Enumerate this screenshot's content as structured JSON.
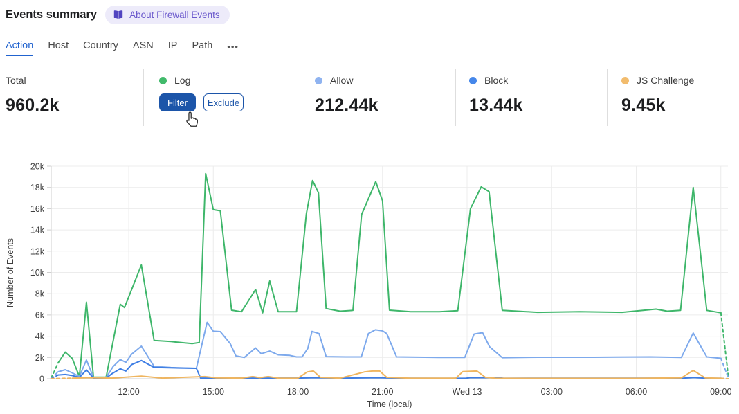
{
  "header": {
    "title": "Events summary",
    "badge": "About Firewall Events"
  },
  "tabs": [
    "Action",
    "Host",
    "Country",
    "ASN",
    "IP",
    "Path"
  ],
  "tabs_more": "•••",
  "stats": [
    {
      "label": "Total",
      "value": "960.2k"
    },
    {
      "label": "Log",
      "dot_style": "background:#41ba6b",
      "buttons": [
        "Filter",
        "Exclude"
      ]
    },
    {
      "label": "Allow",
      "dot_style": "background:#8fb3f0",
      "value": "212.44k"
    },
    {
      "label": "Block",
      "dot_style": "background:#4587ea",
      "value": "13.44k"
    },
    {
      "label": "JS Challenge",
      "dot_style": "background:#f2bc6d",
      "value": "9.45k"
    }
  ],
  "chart_data": {
    "type": "line",
    "xlabel": "Time (local)",
    "ylabel": "Number of Events",
    "unit": "thousands of events (k)",
    "x_unit": "hours relative to Wed 13 00:00",
    "x_domain_hours": [
      -14.75,
      9.27
    ],
    "ylim_k": [
      0,
      20
    ],
    "grid": "horizontal every 2k, vertical every 3h",
    "legend_position": "none (stat cards above act as legend)",
    "colors": {
      "grid": "#ececec",
      "axis": "#cfcfcf",
      "tick_text": "#3f3f3f"
    },
    "yticks": [
      {
        "v": 0,
        "label": "0"
      },
      {
        "v": 2,
        "label": "2k"
      },
      {
        "v": 4,
        "label": "4k"
      },
      {
        "v": 6,
        "label": "6k"
      },
      {
        "v": 8,
        "label": "8k"
      },
      {
        "v": 10,
        "label": "10k"
      },
      {
        "v": 12,
        "label": "12k"
      },
      {
        "v": 14,
        "label": "14k"
      },
      {
        "v": 16,
        "label": "16k"
      },
      {
        "v": 18,
        "label": "18k"
      },
      {
        "v": 20,
        "label": "20k"
      }
    ],
    "xticks": [
      {
        "t": -12,
        "label": "12:00"
      },
      {
        "t": -9,
        "label": "15:00"
      },
      {
        "t": -6,
        "label": "18:00"
      },
      {
        "t": -3,
        "label": "21:00"
      },
      {
        "t": 0,
        "label": "Wed 13"
      },
      {
        "t": 3,
        "label": "03:00"
      },
      {
        "t": 6,
        "label": "06:00"
      },
      {
        "t": 9,
        "label": "09:00"
      }
    ],
    "series": [
      {
        "name": "Log",
        "color": "#3eb66a",
        "dashed_start": true,
        "dashed_end": true,
        "points": [
          [
            -14.75,
            0.05
          ],
          [
            -14.5,
            1.5
          ],
          [
            -14.25,
            2.5
          ],
          [
            -14.0,
            1.9
          ],
          [
            -13.75,
            0.2
          ],
          [
            -13.5,
            7.2
          ],
          [
            -13.25,
            0.15
          ],
          [
            -12.8,
            0.15
          ],
          [
            -12.3,
            7.0
          ],
          [
            -12.15,
            6.7
          ],
          [
            -11.55,
            10.7
          ],
          [
            -11.1,
            3.6
          ],
          [
            -10.5,
            3.5
          ],
          [
            -9.75,
            3.3
          ],
          [
            -9.5,
            3.4
          ],
          [
            -9.27,
            19.3
          ],
          [
            -9.0,
            15.9
          ],
          [
            -8.75,
            15.8
          ],
          [
            -8.35,
            6.45
          ],
          [
            -8.0,
            6.3
          ],
          [
            -7.5,
            8.4
          ],
          [
            -7.25,
            6.2
          ],
          [
            -7.0,
            9.2
          ],
          [
            -6.7,
            6.3
          ],
          [
            -6.05,
            6.3
          ],
          [
            -5.7,
            15.5
          ],
          [
            -5.48,
            18.65
          ],
          [
            -5.27,
            17.5
          ],
          [
            -5.0,
            6.6
          ],
          [
            -4.5,
            6.35
          ],
          [
            -4.05,
            6.43
          ],
          [
            -3.74,
            15.45
          ],
          [
            -3.24,
            18.55
          ],
          [
            -3.0,
            16.75
          ],
          [
            -2.75,
            6.45
          ],
          [
            -2.0,
            6.3
          ],
          [
            -1.0,
            6.3
          ],
          [
            -0.33,
            6.4
          ],
          [
            0.12,
            16.0
          ],
          [
            0.5,
            18.05
          ],
          [
            0.78,
            17.6
          ],
          [
            1.25,
            6.43
          ],
          [
            2.5,
            6.25
          ],
          [
            4.0,
            6.3
          ],
          [
            5.5,
            6.25
          ],
          [
            6.7,
            6.55
          ],
          [
            7.1,
            6.35
          ],
          [
            7.57,
            6.43
          ],
          [
            8.02,
            18.0
          ],
          [
            8.5,
            6.43
          ],
          [
            9.0,
            6.2
          ],
          [
            9.27,
            0.1
          ]
        ]
      },
      {
        "name": "Allow",
        "color": "#7da9ec",
        "dashed_start": true,
        "dashed_end": true,
        "points": [
          [
            -14.75,
            0.02
          ],
          [
            -14.5,
            0.65
          ],
          [
            -14.25,
            0.85
          ],
          [
            -14.0,
            0.55
          ],
          [
            -13.75,
            0.2
          ],
          [
            -13.5,
            1.76
          ],
          [
            -13.25,
            0.12
          ],
          [
            -12.8,
            0.12
          ],
          [
            -12.55,
            1.15
          ],
          [
            -12.3,
            1.8
          ],
          [
            -12.1,
            1.54
          ],
          [
            -11.9,
            2.3
          ],
          [
            -11.55,
            3.06
          ],
          [
            -11.1,
            1.15
          ],
          [
            -10.5,
            1.05
          ],
          [
            -9.6,
            0.98
          ],
          [
            -9.22,
            5.3
          ],
          [
            -9.0,
            4.47
          ],
          [
            -8.75,
            4.43
          ],
          [
            -8.4,
            3.3
          ],
          [
            -8.2,
            2.15
          ],
          [
            -7.9,
            2.0
          ],
          [
            -7.5,
            2.9
          ],
          [
            -7.3,
            2.35
          ],
          [
            -7.0,
            2.6
          ],
          [
            -6.7,
            2.25
          ],
          [
            -6.3,
            2.2
          ],
          [
            -6.05,
            2.05
          ],
          [
            -5.85,
            2.05
          ],
          [
            -5.65,
            2.85
          ],
          [
            -5.5,
            4.45
          ],
          [
            -5.25,
            4.25
          ],
          [
            -5.0,
            2.08
          ],
          [
            -4.3,
            2.05
          ],
          [
            -3.75,
            2.05
          ],
          [
            -3.5,
            4.25
          ],
          [
            -3.25,
            4.6
          ],
          [
            -3.0,
            4.5
          ],
          [
            -2.85,
            4.25
          ],
          [
            -2.5,
            2.05
          ],
          [
            -1.0,
            2.0
          ],
          [
            -0.08,
            2.0
          ],
          [
            0.25,
            4.2
          ],
          [
            0.55,
            4.33
          ],
          [
            0.8,
            3.0
          ],
          [
            1.25,
            1.98
          ],
          [
            2.5,
            2.02
          ],
          [
            4.5,
            2.02
          ],
          [
            6.5,
            2.05
          ],
          [
            7.6,
            2.0
          ],
          [
            8.02,
            4.3
          ],
          [
            8.5,
            2.05
          ],
          [
            9.0,
            1.92
          ],
          [
            9.27,
            0.05
          ]
        ]
      },
      {
        "name": "Block",
        "color": "#3d7de4",
        "dashed_start": true,
        "dashed_end": true,
        "points": [
          [
            -14.75,
            0.02
          ],
          [
            -14.5,
            0.35
          ],
          [
            -14.25,
            0.4
          ],
          [
            -14.0,
            0.3
          ],
          [
            -13.75,
            0.12
          ],
          [
            -13.5,
            0.83
          ],
          [
            -13.25,
            0.06
          ],
          [
            -12.8,
            0.06
          ],
          [
            -12.6,
            0.46
          ],
          [
            -12.3,
            0.93
          ],
          [
            -12.1,
            0.72
          ],
          [
            -11.9,
            1.32
          ],
          [
            -11.55,
            1.71
          ],
          [
            -11.1,
            1.06
          ],
          [
            -10.2,
            1.0
          ],
          [
            -9.6,
            0.98
          ],
          [
            -9.45,
            0.06
          ],
          [
            -8.0,
            0.06
          ],
          [
            -6.0,
            0.06
          ],
          [
            -5.4,
            0.1
          ],
          [
            -4.5,
            0.05
          ],
          [
            -3.2,
            0.1
          ],
          [
            -2.4,
            0.05
          ],
          [
            -0.05,
            0.04
          ],
          [
            0.1,
            0.1
          ],
          [
            1.1,
            0.1
          ],
          [
            1.3,
            0.04
          ],
          [
            3.0,
            0.05
          ],
          [
            5.5,
            0.05
          ],
          [
            7.7,
            0.06
          ],
          [
            8.05,
            0.12
          ],
          [
            8.4,
            0.05
          ],
          [
            9.0,
            0.04
          ],
          [
            9.27,
            0.0
          ]
        ]
      },
      {
        "name": "JS Challenge",
        "color": "#efb55f",
        "dashed_start": true,
        "dashed_end": true,
        "points": [
          [
            -14.75,
            0.01
          ],
          [
            -14.0,
            0.05
          ],
          [
            -13.5,
            0.1
          ],
          [
            -12.6,
            0.06
          ],
          [
            -11.55,
            0.24
          ],
          [
            -10.8,
            0.06
          ],
          [
            -9.3,
            0.2
          ],
          [
            -8.9,
            0.08
          ],
          [
            -8.0,
            0.06
          ],
          [
            -7.6,
            0.2
          ],
          [
            -7.35,
            0.1
          ],
          [
            -7.05,
            0.2
          ],
          [
            -6.7,
            0.06
          ],
          [
            -6.0,
            0.05
          ],
          [
            -5.67,
            0.63
          ],
          [
            -5.45,
            0.72
          ],
          [
            -5.2,
            0.13
          ],
          [
            -4.5,
            0.05
          ],
          [
            -3.65,
            0.63
          ],
          [
            -3.35,
            0.72
          ],
          [
            -3.1,
            0.72
          ],
          [
            -2.85,
            0.13
          ],
          [
            -2.0,
            0.05
          ],
          [
            -0.4,
            0.05
          ],
          [
            -0.15,
            0.67
          ],
          [
            0.35,
            0.72
          ],
          [
            0.65,
            0.13
          ],
          [
            1.0,
            0.05
          ],
          [
            3.0,
            0.04
          ],
          [
            6.0,
            0.04
          ],
          [
            7.6,
            0.08
          ],
          [
            8.02,
            0.78
          ],
          [
            8.45,
            0.08
          ],
          [
            9.0,
            0.04
          ],
          [
            9.27,
            0.0
          ]
        ]
      }
    ]
  }
}
